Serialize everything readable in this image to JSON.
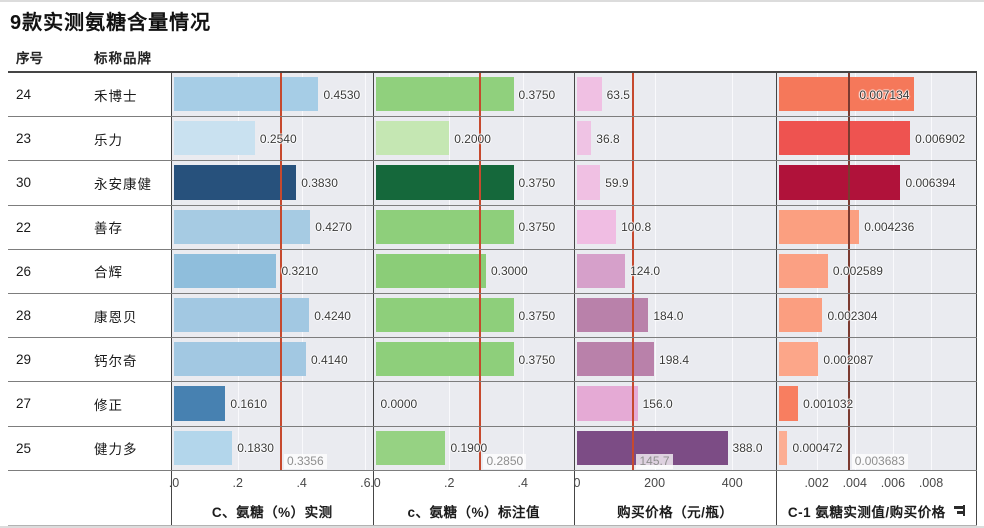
{
  "title": "9款实测氨糖含量情况",
  "chart_data": {
    "type": "bar",
    "orientation": "horizontal",
    "title": "9款实测氨糖含量情况",
    "row_id_header": "序号",
    "brand_header": "标称品牌",
    "category_ids": [
      "24",
      "23",
      "30",
      "22",
      "26",
      "28",
      "29",
      "27",
      "25"
    ],
    "categories": [
      "禾博士",
      "乐力",
      "永安康健",
      "善存",
      "合辉",
      "康恩贝",
      "钙尔奇",
      "修正",
      "健力多"
    ],
    "series": [
      {
        "name": "C、氨糖（%）实测",
        "values": [
          0.453,
          0.254,
          0.383,
          0.427,
          0.321,
          0.424,
          0.414,
          0.161,
          0.183
        ],
        "axis_ticks": [
          0,
          0.2,
          0.4,
          0.6
        ],
        "reference_line": 0.3356
      },
      {
        "name": "c、氨糖（%）标注值",
        "values": [
          0.375,
          0.2,
          0.375,
          0.375,
          0.3,
          0.375,
          0.375,
          0.0,
          0.19
        ],
        "axis_ticks": [
          0,
          0.2,
          0.4
        ],
        "reference_line": 0.285
      },
      {
        "name": "购买价格（元/瓶）",
        "values": [
          63.5,
          36.8,
          59.9,
          100.8,
          124.0,
          184.0,
          198.4,
          156.0,
          388.0
        ],
        "axis_ticks": [
          0,
          200,
          400
        ],
        "reference_line": 145.7
      },
      {
        "name": "C-1 氨糖实测值/购买价格",
        "values": [
          0.007134,
          0.006902,
          0.006394,
          0.004236,
          0.002589,
          0.002304,
          0.002087,
          0.001032,
          0.000472
        ],
        "axis_ticks": [
          0.002,
          0.004,
          0.006,
          0.008
        ],
        "reference_line": 0.003683
      }
    ],
    "legend": false,
    "grid": true,
    "reference_line_color": "#c6492e"
  },
  "table": {
    "id_header": "序号",
    "brand_header": "标称品牌",
    "columns": [
      {
        "key": "measured",
        "title": "C、氨糖（%）实测",
        "sortable": false,
        "ticks": [
          {
            "label": ".0",
            "frac": 0
          },
          {
            "label": ".2",
            "frac": 0.326
          },
          {
            "label": ".4",
            "frac": 0.653
          },
          {
            "label": ".6",
            "frac": 0.979
          }
        ],
        "ref": {
          "frac": 0.547,
          "label": "0.3356",
          "color": "#c6492e"
        }
      },
      {
        "key": "labeled",
        "title": "c、氨糖（%）标注值",
        "sortable": false,
        "ticks": [
          {
            "label": ".0",
            "frac": 0
          },
          {
            "label": ".2",
            "frac": 0.377
          },
          {
            "label": ".4",
            "frac": 0.753
          }
        ],
        "ref": {
          "frac": 0.537,
          "label": "0.2850",
          "color": "#c6492e"
        }
      },
      {
        "key": "price",
        "title": "购买价格（元/瓶）",
        "sortable": false,
        "ticks": [
          {
            "label": "0",
            "frac": 0
          },
          {
            "label": "200",
            "frac": 0.397
          },
          {
            "label": "400",
            "frac": 0.794
          }
        ],
        "ref": {
          "frac": 0.289,
          "label": "145.7",
          "color": "#c6492e"
        }
      },
      {
        "key": "ratio",
        "title": "C-1 氨糖实测值/购买价格",
        "sortable": true,
        "ticks": [
          {
            "label": ".002",
            "frac": 0.196
          },
          {
            "label": ".004",
            "frac": 0.392
          },
          {
            "label": ".006",
            "frac": 0.588
          },
          {
            "label": ".008",
            "frac": 0.784
          }
        ],
        "ref": {
          "frac": 0.361,
          "label": "0.003683",
          "color": "#7b3a30"
        }
      }
    ],
    "rows": [
      {
        "id": "24",
        "brand": "禾博士",
        "cells": [
          {
            "label": "0.4530",
            "frac": 0.739,
            "color": "#a6cde6"
          },
          {
            "label": "0.3750",
            "frac": 0.706,
            "color": "#90d07d"
          },
          {
            "label": "63.5",
            "frac": 0.126,
            "color": "#f0c0e3"
          },
          {
            "label": "0.007134",
            "frac": 0.699,
            "color": "#f5785a",
            "inside": true
          }
        ]
      },
      {
        "id": "23",
        "brand": "乐力",
        "cells": [
          {
            "label": "0.2540",
            "frac": 0.414,
            "color": "#c9e1f0"
          },
          {
            "label": "0.2000",
            "frac": 0.377,
            "color": "#c5e7b3"
          },
          {
            "label": "36.8",
            "frac": 0.073,
            "color": "#efc3e4"
          },
          {
            "label": "0.006902",
            "frac": 0.677,
            "color": "#ee5350"
          }
        ]
      },
      {
        "id": "30",
        "brand": "永安康健",
        "cells": [
          {
            "label": "0.3830",
            "frac": 0.625,
            "color": "#27517c"
          },
          {
            "label": "0.3750",
            "frac": 0.706,
            "color": "#15683b"
          },
          {
            "label": "59.9",
            "frac": 0.119,
            "color": "#f0c0e3"
          },
          {
            "label": "0.006394",
            "frac": 0.627,
            "color": "#b0123a"
          }
        ]
      },
      {
        "id": "22",
        "brand": "善存",
        "cells": [
          {
            "label": "0.4270",
            "frac": 0.697,
            "color": "#a6cbe3"
          },
          {
            "label": "0.3750",
            "frac": 0.706,
            "color": "#8ecf7b"
          },
          {
            "label": "100.8",
            "frac": 0.2,
            "color": "#f0bde3"
          },
          {
            "label": "0.004236",
            "frac": 0.415,
            "color": "#fb9f80"
          }
        ]
      },
      {
        "id": "26",
        "brand": "合辉",
        "cells": [
          {
            "label": "0.3210",
            "frac": 0.524,
            "color": "#8fbedc"
          },
          {
            "label": "0.3000",
            "frac": 0.565,
            "color": "#8bcd78"
          },
          {
            "label": "124.0",
            "frac": 0.246,
            "color": "#d6a0ca"
          },
          {
            "label": "0.002589",
            "frac": 0.254,
            "color": "#fba083"
          }
        ]
      },
      {
        "id": "28",
        "brand": "康恩贝",
        "cells": [
          {
            "label": "0.4240",
            "frac": 0.692,
            "color": "#a2c8e2"
          },
          {
            "label": "0.3750",
            "frac": 0.706,
            "color": "#8ecf7b"
          },
          {
            "label": "184.0",
            "frac": 0.365,
            "color": "#b981aa"
          },
          {
            "label": "0.002304",
            "frac": 0.226,
            "color": "#fb9e80"
          }
        ]
      },
      {
        "id": "29",
        "brand": "钙尔奇",
        "cells": [
          {
            "label": "0.4140",
            "frac": 0.675,
            "color": "#a2c8e2"
          },
          {
            "label": "0.3750",
            "frac": 0.706,
            "color": "#8ecf7b"
          },
          {
            "label": "198.4",
            "frac": 0.394,
            "color": "#b981aa"
          },
          {
            "label": "0.002087",
            "frac": 0.205,
            "color": "#fca689"
          }
        ]
      },
      {
        "id": "27",
        "brand": "修正",
        "cells": [
          {
            "label": "0.1610",
            "frac": 0.263,
            "color": "#4781b1"
          },
          {
            "label": "0.0000",
            "frac": 0,
            "color": null
          },
          {
            "label": "156.0",
            "frac": 0.31,
            "color": "#e5aad5"
          },
          {
            "label": "0.001032",
            "frac": 0.101,
            "color": "#f87e60"
          }
        ]
      },
      {
        "id": "25",
        "brand": "健力多",
        "cells": [
          {
            "label": "0.1830",
            "frac": 0.298,
            "color": "#b3d6eb"
          },
          {
            "label": "0.1900",
            "frac": 0.358,
            "color": "#96d283"
          },
          {
            "label": "388.0",
            "frac": 0.77,
            "color": "#7c4c85"
          },
          {
            "label": "0.000472",
            "frac": 0.046,
            "color": "#fcae93"
          }
        ]
      }
    ]
  }
}
